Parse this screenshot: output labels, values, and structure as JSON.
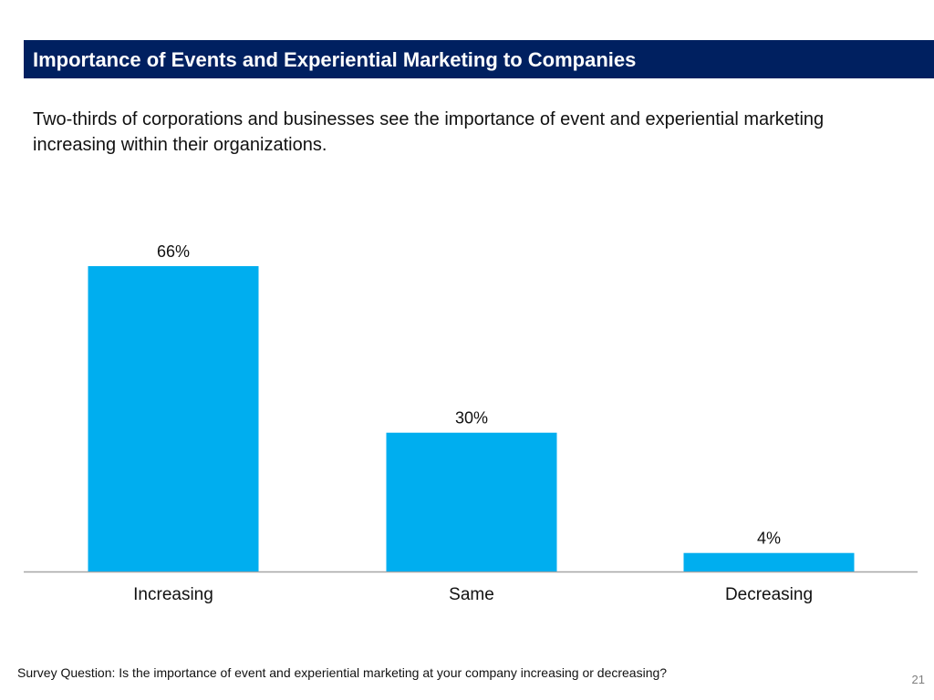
{
  "header": {
    "title": "Importance of Events and Experiential Marketing to Companies",
    "title_bg_color": "#002060"
  },
  "subtitle": "Two-thirds of corporations and businesses see the importance of event and experiential marketing increasing within their organizations.",
  "chart_data": {
    "type": "bar",
    "categories": [
      "Increasing",
      "Same",
      "Decreasing"
    ],
    "values": [
      66,
      30,
      4
    ],
    "data_labels": [
      "66%",
      "30%",
      "4%"
    ],
    "unit": "%",
    "title": "",
    "xlabel": "",
    "ylabel": "",
    "ylim": [
      0,
      66
    ],
    "grid": false,
    "legend": "none",
    "bar_color": "#00AEEF",
    "axis_color": "#A6A6A6"
  },
  "footer": {
    "survey_question": "Survey Question: Is the importance of event and experiential marketing at your company increasing or decreasing?",
    "page_number": "21"
  }
}
